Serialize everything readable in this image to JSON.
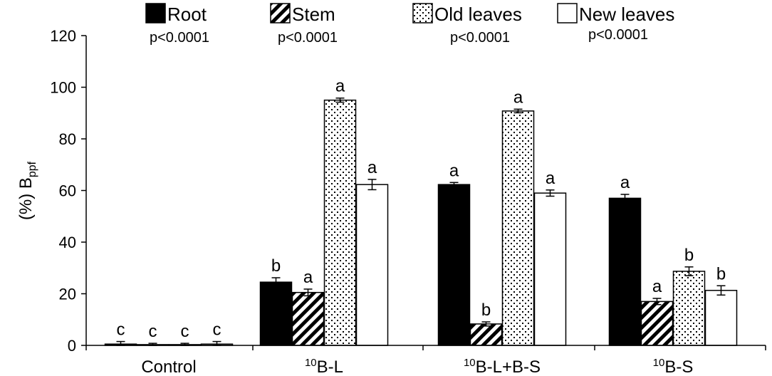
{
  "chart_data": {
    "type": "bar",
    "ylabel": "(%) B",
    "ylabel_sub": "ppf",
    "ylim": [
      0,
      120
    ],
    "yticks": [
      "0",
      "20",
      "40",
      "60",
      "80",
      "100",
      "120"
    ],
    "grid": false,
    "legend_position": "top",
    "categories": [
      {
        "pre": "",
        "sup": "",
        "main": "Control"
      },
      {
        "pre": "",
        "sup": "10",
        "main": "B-L"
      },
      {
        "pre": "",
        "sup": "10",
        "main": "B-L+B-S"
      },
      {
        "pre": "",
        "sup": "10",
        "main": "B-S"
      }
    ],
    "series": [
      {
        "name": "Root",
        "pattern": "solid",
        "values": [
          0.5,
          24.5,
          62.3,
          57.0
        ],
        "errors": [
          1.0,
          1.7,
          0.8,
          1.5
        ],
        "letters": [
          "c",
          "b",
          "a",
          "a"
        ]
      },
      {
        "name": "Stem",
        "pattern": "diagonal-stripes",
        "values": [
          0.3,
          20.5,
          8.3,
          17.0
        ],
        "errors": [
          0.5,
          1.3,
          0.8,
          1.2
        ],
        "letters": [
          "c",
          "a",
          "b",
          "a"
        ]
      },
      {
        "name": "Old leaves",
        "pattern": "dots",
        "values": [
          0.3,
          95.0,
          90.8,
          28.7
        ],
        "errors": [
          0.5,
          0.8,
          0.7,
          1.7
        ],
        "letters": [
          "c",
          "a",
          "a",
          "b"
        ]
      },
      {
        "name": "New leaves",
        "pattern": "white",
        "values": [
          0.5,
          62.3,
          59.0,
          21.3
        ],
        "errors": [
          1.0,
          2.0,
          1.2,
          1.8
        ],
        "letters": [
          "c",
          "a",
          "a",
          "b"
        ]
      }
    ],
    "pvalues": [
      "p<0.0001",
      "p<0.0001",
      "p<0.0001",
      "p<0.0001"
    ]
  }
}
